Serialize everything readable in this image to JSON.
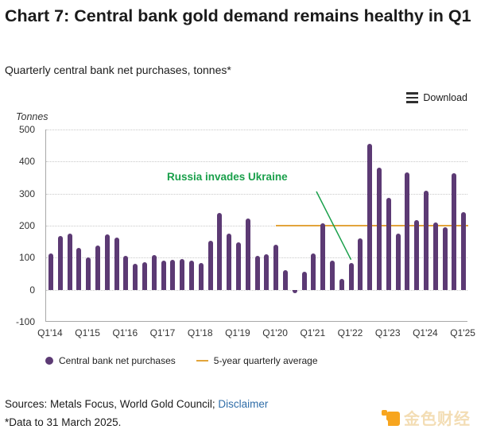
{
  "header": {
    "title": "Chart 7: Central bank gold demand remains healthy in Q1",
    "subtitle": "Quarterly central bank net purchases, tonnes*",
    "download_label": "Download"
  },
  "chart_data": {
    "type": "bar",
    "title": "Quarterly central bank net purchases, tonnes",
    "unit_label": "Tonnes",
    "ylim": [
      -100,
      500
    ],
    "yticks": [
      500,
      400,
      300,
      200,
      100,
      0,
      -100
    ],
    "grid": "dotted-horizontal",
    "x": [
      "Q1'14",
      "Q2'14",
      "Q3'14",
      "Q4'14",
      "Q1'15",
      "Q2'15",
      "Q3'15",
      "Q4'15",
      "Q1'16",
      "Q2'16",
      "Q3'16",
      "Q4'16",
      "Q1'17",
      "Q2'17",
      "Q3'17",
      "Q4'17",
      "Q1'18",
      "Q2'18",
      "Q3'18",
      "Q4'18",
      "Q1'19",
      "Q2'19",
      "Q3'19",
      "Q4'19",
      "Q1'20",
      "Q2'20",
      "Q3'20",
      "Q4'20",
      "Q1'21",
      "Q2'21",
      "Q3'21",
      "Q4'21",
      "Q1'22",
      "Q2'22",
      "Q3'22",
      "Q4'22",
      "Q1'23",
      "Q2'23",
      "Q3'23",
      "Q4'23",
      "Q1'24",
      "Q2'24",
      "Q3'24",
      "Q4'24",
      "Q1'25"
    ],
    "xtick_labels": [
      "Q1'14",
      "Q1'15",
      "Q1'16",
      "Q1'17",
      "Q1'18",
      "Q1'19",
      "Q1'20",
      "Q1'21",
      "Q1'22",
      "Q1'23",
      "Q1'24",
      "Q1'25"
    ],
    "xtick_every": 4,
    "series": [
      {
        "name": "Central bank net purchases",
        "type": "bar",
        "color": "#5c3a74",
        "values": [
          112,
          168,
          175,
          130,
          102,
          137,
          172,
          162,
          107,
          82,
          87,
          108,
          90,
          94,
          95,
          92,
          83,
          152,
          240,
          175,
          147,
          222,
          106,
          110,
          140,
          60,
          -10,
          57,
          113,
          207,
          90,
          35,
          84,
          160,
          455,
          380,
          288,
          176,
          365,
          218,
          308,
          209,
          196,
          363,
          242
        ]
      },
      {
        "name": "5-year quarterly average",
        "type": "line",
        "color": "#e2a43b",
        "value": 200,
        "start_label": "Q1'20",
        "end_label": "Q1'25"
      }
    ],
    "annotation": {
      "text": "Russia invades Ukraine",
      "color": "#1aa04b",
      "target_label": "Q1'22"
    }
  },
  "legend": [
    {
      "label": "Central bank net purchases",
      "marker": "circle",
      "color": "#5c3a74"
    },
    {
      "label": "5-year quarterly average",
      "marker": "line",
      "color": "#e2a43b"
    }
  ],
  "footer": {
    "sources_text": "Sources: Metals Focus, World Gold Council;",
    "disclaimer_label": "Disclaimer",
    "footnote": "*Data to 31 March 2025."
  },
  "watermark": {
    "text": "金色财经"
  }
}
